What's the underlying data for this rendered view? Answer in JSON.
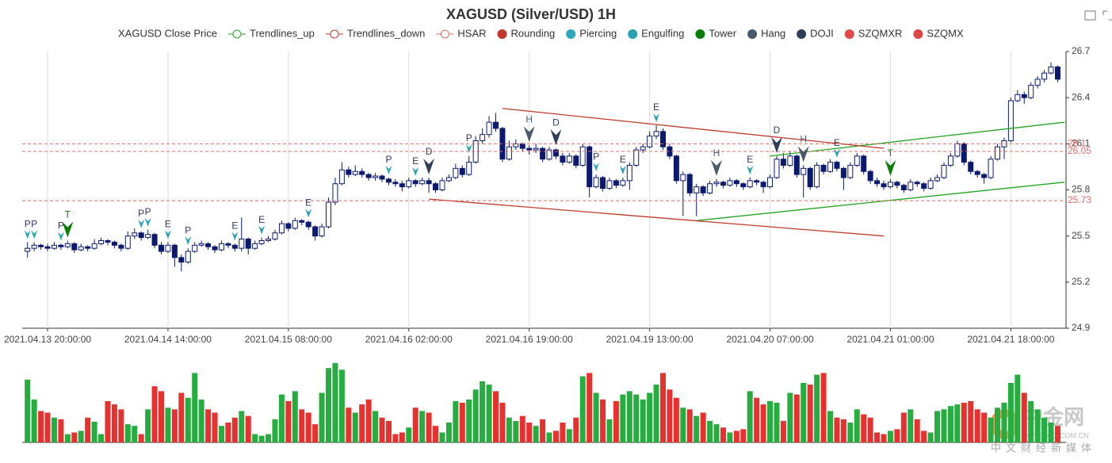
{
  "chart_data": {
    "type": "candlestick",
    "title": "XAGUSD (Silver/USD) 1H",
    "categories": [
      null,
      null,
      null,
      "2021.04.13 20:00:00",
      null,
      null,
      null,
      null,
      null,
      null,
      null,
      null,
      null,
      null,
      null,
      null,
      null,
      null,
      null,
      null,
      null,
      "2021.04.14 14:00:00",
      null,
      null,
      null,
      null,
      null,
      null,
      null,
      null,
      null,
      null,
      null,
      null,
      null,
      null,
      null,
      null,
      null,
      "2021.04.15 08:00:00",
      null,
      null,
      null,
      null,
      null,
      null,
      null,
      null,
      null,
      null,
      null,
      null,
      null,
      null,
      null,
      null,
      null,
      "2021.04.16 02:00:00",
      null,
      null,
      null,
      null,
      null,
      null,
      null,
      null,
      null,
      null,
      null,
      null,
      null,
      null,
      null,
      null,
      null,
      "2021.04.16 19:00:00",
      null,
      null,
      null,
      null,
      null,
      null,
      null,
      null,
      null,
      null,
      null,
      null,
      null,
      null,
      null,
      null,
      null,
      "2021.04.19 13:00:00",
      null,
      null,
      null,
      null,
      null,
      null,
      null,
      null,
      null,
      null,
      null,
      null,
      null,
      null,
      null,
      null,
      null,
      "2021.04.20 07:00:00",
      null,
      null,
      null,
      null,
      null,
      null,
      null,
      null,
      null,
      null,
      null,
      null,
      null,
      null,
      null,
      null,
      null,
      "2021.04.21 01:00:00",
      null,
      null,
      null,
      null,
      null,
      null,
      null,
      null,
      null,
      null,
      null,
      null,
      null,
      null,
      null,
      null,
      null,
      "2021.04.21 18:00:00",
      null,
      null,
      null,
      null,
      null,
      null,
      null
    ],
    "values": [
      [
        25.4,
        25.46,
        25.36,
        25.42
      ],
      [
        25.42,
        25.46,
        25.4,
        25.44
      ],
      [
        25.44,
        25.45,
        25.41,
        25.43
      ],
      [
        25.43,
        25.45,
        25.4,
        25.42
      ],
      [
        25.42,
        25.46,
        25.41,
        25.44
      ],
      [
        25.44,
        25.45,
        25.41,
        25.43
      ],
      [
        25.43,
        25.47,
        25.42,
        25.45
      ],
      [
        25.45,
        25.46,
        25.39,
        25.41
      ],
      [
        25.41,
        25.45,
        25.4,
        25.43
      ],
      [
        25.43,
        25.44,
        25.4,
        25.42
      ],
      [
        25.42,
        25.48,
        25.41,
        25.45
      ],
      [
        25.45,
        25.49,
        25.44,
        25.47
      ],
      [
        25.47,
        25.48,
        25.44,
        25.46
      ],
      [
        25.46,
        25.47,
        25.42,
        25.44
      ],
      [
        25.44,
        25.45,
        25.4,
        25.42
      ],
      [
        25.42,
        25.53,
        25.41,
        25.5
      ],
      [
        25.5,
        25.55,
        25.48,
        25.52
      ],
      [
        25.52,
        25.53,
        25.47,
        25.49
      ],
      [
        25.49,
        25.54,
        25.48,
        25.51
      ],
      [
        25.51,
        25.52,
        25.42,
        25.44
      ],
      [
        25.44,
        25.46,
        25.38,
        25.4
      ],
      [
        25.4,
        25.46,
        25.39,
        25.44
      ],
      [
        25.44,
        25.45,
        25.3,
        25.36
      ],
      [
        25.36,
        25.38,
        25.27,
        25.33
      ],
      [
        25.33,
        25.42,
        25.32,
        25.4
      ],
      [
        25.4,
        25.46,
        25.39,
        25.44
      ],
      [
        25.44,
        25.47,
        25.43,
        25.45
      ],
      [
        25.45,
        25.46,
        25.41,
        25.43
      ],
      [
        25.43,
        25.44,
        25.39,
        25.41
      ],
      [
        25.41,
        25.47,
        25.4,
        25.45
      ],
      [
        25.45,
        25.46,
        25.42,
        25.44
      ],
      [
        25.44,
        25.45,
        25.4,
        25.42
      ],
      [
        25.42,
        25.62,
        25.4,
        25.48
      ],
      [
        25.48,
        25.49,
        25.38,
        25.42
      ],
      [
        25.42,
        25.47,
        25.41,
        25.45
      ],
      [
        25.45,
        25.49,
        25.44,
        25.47
      ],
      [
        25.47,
        25.5,
        25.46,
        25.48
      ],
      [
        25.48,
        25.54,
        25.47,
        25.52
      ],
      [
        25.52,
        25.6,
        25.51,
        25.58
      ],
      [
        25.58,
        25.59,
        25.53,
        25.55
      ],
      [
        25.55,
        25.62,
        25.54,
        25.6
      ],
      [
        25.6,
        25.61,
        25.57,
        25.59
      ],
      [
        25.59,
        25.6,
        25.54,
        25.56
      ],
      [
        25.56,
        25.57,
        25.47,
        25.5
      ],
      [
        25.5,
        25.58,
        25.49,
        25.56
      ],
      [
        25.56,
        25.75,
        25.55,
        25.72
      ],
      [
        25.72,
        25.88,
        25.7,
        25.84
      ],
      [
        25.84,
        25.98,
        25.83,
        25.93
      ],
      [
        25.93,
        25.95,
        25.88,
        25.9
      ],
      [
        25.9,
        25.96,
        25.89,
        25.92
      ],
      [
        25.92,
        25.94,
        25.88,
        25.9
      ],
      [
        25.9,
        25.91,
        25.86,
        25.88
      ],
      [
        25.88,
        25.91,
        25.86,
        25.89
      ],
      [
        25.89,
        25.9,
        25.85,
        25.87
      ],
      [
        25.87,
        25.88,
        25.83,
        25.85
      ],
      [
        25.85,
        25.87,
        25.82,
        25.84
      ],
      [
        25.84,
        25.86,
        25.79,
        25.82
      ],
      [
        25.82,
        25.88,
        25.81,
        25.86
      ],
      [
        25.86,
        25.87,
        25.82,
        25.84
      ],
      [
        25.84,
        25.88,
        25.83,
        25.86
      ],
      [
        25.86,
        25.88,
        25.78,
        25.84
      ],
      [
        25.84,
        25.85,
        25.78,
        25.8
      ],
      [
        25.8,
        25.88,
        25.79,
        25.86
      ],
      [
        25.86,
        25.9,
        25.85,
        25.88
      ],
      [
        25.88,
        25.97,
        25.87,
        25.94
      ],
      [
        25.94,
        25.96,
        25.88,
        25.9
      ],
      [
        25.9,
        26.02,
        25.89,
        25.98
      ],
      [
        25.98,
        26.15,
        25.97,
        26.12
      ],
      [
        26.12,
        26.2,
        26.1,
        26.16
      ],
      [
        26.16,
        26.28,
        26.14,
        26.24
      ],
      [
        26.24,
        26.3,
        26.18,
        26.2
      ],
      [
        26.2,
        26.21,
        25.98,
        26.0
      ],
      [
        26.0,
        26.12,
        25.99,
        26.08
      ],
      [
        26.08,
        26.13,
        26.06,
        26.1
      ],
      [
        26.1,
        26.11,
        26.05,
        26.07
      ],
      [
        26.07,
        26.09,
        26.03,
        26.06
      ],
      [
        26.06,
        26.1,
        26.04,
        26.07
      ],
      [
        26.07,
        26.08,
        25.98,
        26.0
      ],
      [
        26.0,
        26.08,
        25.99,
        26.06
      ],
      [
        26.06,
        26.07,
        26.0,
        26.02
      ],
      [
        26.02,
        26.04,
        25.96,
        25.98
      ],
      [
        25.98,
        26.04,
        25.97,
        26.02
      ],
      [
        26.02,
        26.03,
        25.94,
        25.96
      ],
      [
        25.96,
        26.1,
        25.95,
        26.08
      ],
      [
        26.08,
        26.09,
        25.75,
        25.82
      ],
      [
        25.82,
        25.9,
        25.81,
        25.88
      ],
      [
        25.88,
        25.89,
        25.79,
        25.81
      ],
      [
        25.81,
        25.88,
        25.8,
        25.86
      ],
      [
        25.86,
        25.87,
        25.81,
        25.83
      ],
      [
        25.83,
        25.88,
        25.82,
        25.86
      ],
      [
        25.86,
        25.98,
        25.8,
        25.96
      ],
      [
        25.96,
        26.08,
        25.95,
        26.06
      ],
      [
        26.06,
        26.1,
        26.04,
        26.08
      ],
      [
        26.08,
        26.18,
        26.07,
        26.15
      ],
      [
        26.15,
        26.22,
        26.13,
        26.18
      ],
      [
        26.18,
        26.2,
        26.06,
        26.08
      ],
      [
        26.08,
        26.1,
        26.0,
        26.02
      ],
      [
        26.02,
        26.03,
        25.84,
        25.86
      ],
      [
        25.86,
        25.92,
        25.63,
        25.9
      ],
      [
        25.9,
        25.91,
        25.76,
        25.78
      ],
      [
        25.78,
        25.84,
        25.63,
        25.82
      ],
      [
        25.82,
        25.83,
        25.76,
        25.78
      ],
      [
        25.78,
        25.86,
        25.77,
        25.84
      ],
      [
        25.84,
        25.87,
        25.82,
        25.85
      ],
      [
        25.85,
        25.86,
        25.81,
        25.83
      ],
      [
        25.83,
        25.88,
        25.82,
        25.86
      ],
      [
        25.86,
        25.87,
        25.82,
        25.84
      ],
      [
        25.84,
        25.85,
        25.8,
        25.82
      ],
      [
        25.82,
        25.88,
        25.81,
        25.86
      ],
      [
        25.86,
        25.87,
        25.83,
        25.85
      ],
      [
        25.85,
        25.86,
        25.78,
        25.82
      ],
      [
        25.82,
        25.9,
        25.81,
        25.88
      ],
      [
        25.88,
        26.02,
        25.87,
        26.0
      ],
      [
        26.0,
        26.04,
        25.94,
        25.96
      ],
      [
        25.96,
        26.05,
        25.95,
        26.02
      ],
      [
        26.02,
        26.03,
        25.88,
        25.9
      ],
      [
        25.9,
        25.96,
        25.75,
        25.94
      ],
      [
        25.94,
        25.95,
        25.8,
        25.82
      ],
      [
        25.82,
        25.98,
        25.81,
        25.96
      ],
      [
        25.96,
        25.97,
        25.9,
        25.92
      ],
      [
        25.92,
        26.0,
        25.91,
        25.98
      ],
      [
        25.98,
        25.99,
        25.92,
        25.94
      ],
      [
        25.94,
        25.95,
        25.8,
        25.88
      ],
      [
        25.88,
        25.98,
        25.87,
        25.96
      ],
      [
        25.96,
        26.04,
        25.95,
        26.02
      ],
      [
        26.02,
        26.03,
        25.9,
        25.92
      ],
      [
        25.92,
        25.93,
        25.84,
        25.86
      ],
      [
        25.86,
        25.88,
        25.82,
        25.84
      ],
      [
        25.84,
        25.86,
        25.8,
        25.82
      ],
      [
        25.82,
        25.87,
        25.81,
        25.85
      ],
      [
        25.85,
        25.86,
        25.81,
        25.83
      ],
      [
        25.83,
        25.84,
        25.78,
        25.8
      ],
      [
        25.8,
        25.87,
        25.79,
        25.85
      ],
      [
        25.85,
        25.86,
        25.82,
        25.84
      ],
      [
        25.84,
        25.85,
        25.79,
        25.81
      ],
      [
        25.81,
        25.88,
        25.8,
        25.86
      ],
      [
        25.86,
        25.9,
        25.85,
        25.88
      ],
      [
        25.88,
        25.98,
        25.87,
        25.96
      ],
      [
        25.96,
        26.04,
        25.95,
        26.02
      ],
      [
        26.02,
        26.12,
        26.01,
        26.1
      ],
      [
        26.1,
        26.11,
        25.96,
        25.98
      ],
      [
        25.98,
        25.99,
        25.9,
        25.92
      ],
      [
        25.92,
        25.93,
        25.88,
        25.9
      ],
      [
        25.9,
        25.91,
        25.84,
        25.88
      ],
      [
        25.88,
        26.02,
        25.87,
        26.0
      ],
      [
        26.0,
        26.1,
        25.99,
        26.08
      ],
      [
        26.08,
        26.14,
        26.0,
        26.12
      ],
      [
        26.12,
        26.4,
        26.11,
        26.38
      ],
      [
        26.38,
        26.45,
        26.37,
        26.42
      ],
      [
        26.42,
        26.44,
        26.36,
        26.4
      ],
      [
        26.4,
        26.5,
        26.39,
        26.48
      ],
      [
        26.48,
        26.54,
        26.46,
        26.52
      ],
      [
        26.52,
        26.58,
        26.5,
        26.56
      ],
      [
        26.56,
        26.63,
        26.55,
        26.6
      ],
      [
        26.6,
        26.61,
        26.5,
        26.52
      ]
    ],
    "volume": [
      76,
      52,
      38,
      36,
      30,
      28,
      10,
      12,
      14,
      30,
      25,
      10,
      50,
      46,
      40,
      22,
      20,
      10,
      40,
      68,
      62,
      42,
      40,
      60,
      54,
      84,
      52,
      40,
      36,
      20,
      24,
      30,
      38,
      32,
      10,
      8,
      10,
      28,
      58,
      50,
      62,
      40,
      36,
      22,
      60,
      90,
      96,
      88,
      42,
      36,
      46,
      52,
      38,
      30,
      26,
      10,
      12,
      18,
      42,
      38,
      36,
      20,
      12,
      24,
      50,
      48,
      52,
      64,
      74,
      70,
      62,
      48,
      30,
      26,
      32,
      24,
      20,
      28,
      12,
      14,
      24,
      16,
      30,
      80,
      84,
      60,
      52,
      28,
      50,
      58,
      62,
      58,
      52,
      60,
      70,
      84,
      64,
      54,
      42,
      40,
      32,
      36,
      26,
      22,
      18,
      12,
      14,
      16,
      62,
      54,
      46,
      50,
      48,
      26,
      60,
      58,
      72,
      70,
      82,
      84,
      38,
      30,
      28,
      24,
      40,
      34,
      30,
      12,
      10,
      14,
      16,
      36,
      40,
      28,
      14,
      12,
      38,
      40,
      44,
      46,
      48,
      50,
      40,
      36,
      30,
      42,
      48,
      72,
      82,
      60,
      50,
      40,
      30,
      24,
      20
    ],
    "candle_color": "#0b1a6e",
    "volume_up_color": "#25ad3f",
    "volume_down_color": "#e8302f",
    "ylim": [
      24.9,
      26.7
    ],
    "yticks": [
      24.9,
      25.2,
      25.5,
      25.8,
      26.1,
      26.4,
      26.7
    ],
    "series": [
      {
        "name": "XAGUSD Close Price",
        "color": "#0b1a6e",
        "symbol": "none"
      },
      {
        "name": "Trendlines_up",
        "color": "#22a722",
        "symbol": "line-circle",
        "lines": [
          {
            "x": [
              100,
              155
            ],
            "y": [
              25.6,
              25.85
            ]
          },
          {
            "x": [
              111,
              155
            ],
            "y": [
              26.02,
              26.24
            ]
          }
        ]
      },
      {
        "name": "Trendlines_down",
        "color": "#c0392b",
        "symbol": "line-circle",
        "lines": [
          {
            "x": [
              71,
              128
            ],
            "y": [
              26.33,
              26.07
            ]
          },
          {
            "x": [
              60,
              128
            ],
            "y": [
              25.74,
              25.5
            ]
          }
        ]
      },
      {
        "name": "HSAR",
        "color": "#e26b6b",
        "symbol": "line-circle",
        "levels": [
          26.1,
          26.05,
          25.73
        ]
      },
      {
        "name": "Rounding",
        "color": "#c0392b",
        "symbol": "dot"
      },
      {
        "name": "Piercing",
        "color": "#2ba7b9",
        "symbol": "dot",
        "marker": "small",
        "points": [
          {
            "x": 0,
            "label": "P"
          },
          {
            "x": 1,
            "label": "P"
          },
          {
            "x": 5,
            "label": "P"
          },
          {
            "x": 17,
            "label": "P"
          },
          {
            "x": 18,
            "label": "P"
          },
          {
            "x": 24,
            "label": "P"
          },
          {
            "x": 54,
            "label": "P"
          },
          {
            "x": 66,
            "label": "P"
          },
          {
            "x": 85,
            "label": "P"
          }
        ]
      },
      {
        "name": "Engulfing",
        "color": "#27a1b3",
        "symbol": "dot",
        "marker": "small",
        "points": [
          {
            "x": 21,
            "label": "E"
          },
          {
            "x": 31,
            "label": "E"
          },
          {
            "x": 35,
            "label": "E"
          },
          {
            "x": 42,
            "label": "E"
          },
          {
            "x": 58,
            "label": "E"
          },
          {
            "x": 89,
            "label": "E"
          },
          {
            "x": 94,
            "label": "E"
          },
          {
            "x": 108,
            "label": "E"
          },
          {
            "x": 121,
            "label": "E"
          }
        ]
      },
      {
        "name": "Tower",
        "color": "#0a7d0a",
        "symbol": "dot",
        "marker": "large",
        "points": [
          {
            "x": 6,
            "label": "T"
          },
          {
            "x": 129,
            "label": "T"
          }
        ]
      },
      {
        "name": "Hang",
        "color": "#4b5a6b",
        "symbol": "dot",
        "marker": "large",
        "points": [
          {
            "x": 75,
            "label": "H"
          },
          {
            "x": 103,
            "label": "H"
          },
          {
            "x": 116,
            "label": "H"
          }
        ]
      },
      {
        "name": "DOJI",
        "color": "#2f3f58",
        "symbol": "dot",
        "marker": "large",
        "points": [
          {
            "x": 60,
            "label": "D"
          },
          {
            "x": 79,
            "label": "D"
          },
          {
            "x": 112,
            "label": "D"
          }
        ]
      },
      {
        "name": "SZQMXR",
        "color": "#e24a4a",
        "symbol": "dot"
      },
      {
        "name": "SZQMX",
        "color": "#e04444",
        "symbol": "dot"
      }
    ],
    "watermark": "中金网",
    "watermark_url": "CNGOLD.COM.CN",
    "watermark_sub": "中文财经新媒体"
  }
}
